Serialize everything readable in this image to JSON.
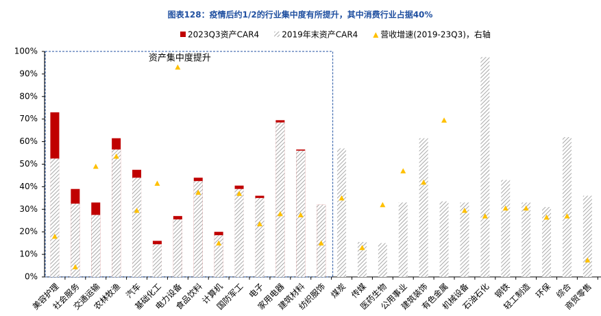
{
  "chart_data": {
    "type": "bar",
    "title": "图表128：疫情后约1/2的行业集中度有所提升，其中消费行业占据40%",
    "annotation": "资产集中度提升",
    "categories": [
      "美容护理",
      "社会服务",
      "交通运输",
      "农林牧渔",
      "汽车",
      "基础化工",
      "电力设备",
      "食品饮料",
      "计算机",
      "国防军工",
      "电子",
      "家用电器",
      "建筑材料",
      "纺织服饰",
      "煤炭",
      "传媒",
      "医药生物",
      "公用事业",
      "建筑装饰",
      "有色金属",
      "机械设备",
      "石油石化",
      "钢铁",
      "轻工制造",
      "环保",
      "综合",
      "商贸零售"
    ],
    "series": [
      {
        "name": "2023Q3资产CAR4",
        "color": "#c00000",
        "values": [
          73,
          39,
          33,
          61.5,
          47.5,
          16,
          27,
          44,
          20,
          40.5,
          36,
          69.5,
          56.5,
          32,
          null,
          null,
          null,
          null,
          null,
          null,
          null,
          null,
          null,
          null,
          null,
          null,
          null
        ]
      },
      {
        "name": "2019年末资产CAR4",
        "color": "#8c8c8c",
        "pattern": "hatch",
        "values": [
          52.5,
          32.5,
          27.5,
          56.5,
          44,
          14.5,
          25.5,
          42.5,
          18.5,
          39,
          35,
          68.5,
          56,
          32,
          57,
          15.5,
          15,
          33,
          61.5,
          33.5,
          33,
          97.5,
          43,
          33,
          31,
          62,
          36
        ]
      },
      {
        "name": "营收增速(2019-23Q3)，右轴",
        "color": "#ffc000",
        "marker": "triangle",
        "values": [
          18,
          4.5,
          49,
          53.5,
          29.5,
          41.5,
          93,
          37.5,
          15,
          37,
          23.5,
          28,
          27.5,
          15,
          35,
          13,
          32,
          47,
          42,
          69.5,
          29.5,
          27,
          30.5,
          30.5,
          26.5,
          27,
          7.5
        ]
      }
    ],
    "ylim": [
      0,
      100
    ],
    "yticks": [
      {
        "value": 0,
        "label": "0%"
      },
      {
        "value": 10,
        "label": "10%"
      },
      {
        "value": 20,
        "label": "20%"
      },
      {
        "value": 30,
        "label": "30%"
      },
      {
        "value": 40,
        "label": "40%"
      },
      {
        "value": 50,
        "label": "50%"
      },
      {
        "value": 60,
        "label": "60%"
      },
      {
        "value": 70,
        "label": "70%"
      },
      {
        "value": 80,
        "label": "80%"
      },
      {
        "value": 90,
        "label": "90%"
      },
      {
        "value": 100,
        "label": "100%"
      }
    ],
    "grid": false
  }
}
